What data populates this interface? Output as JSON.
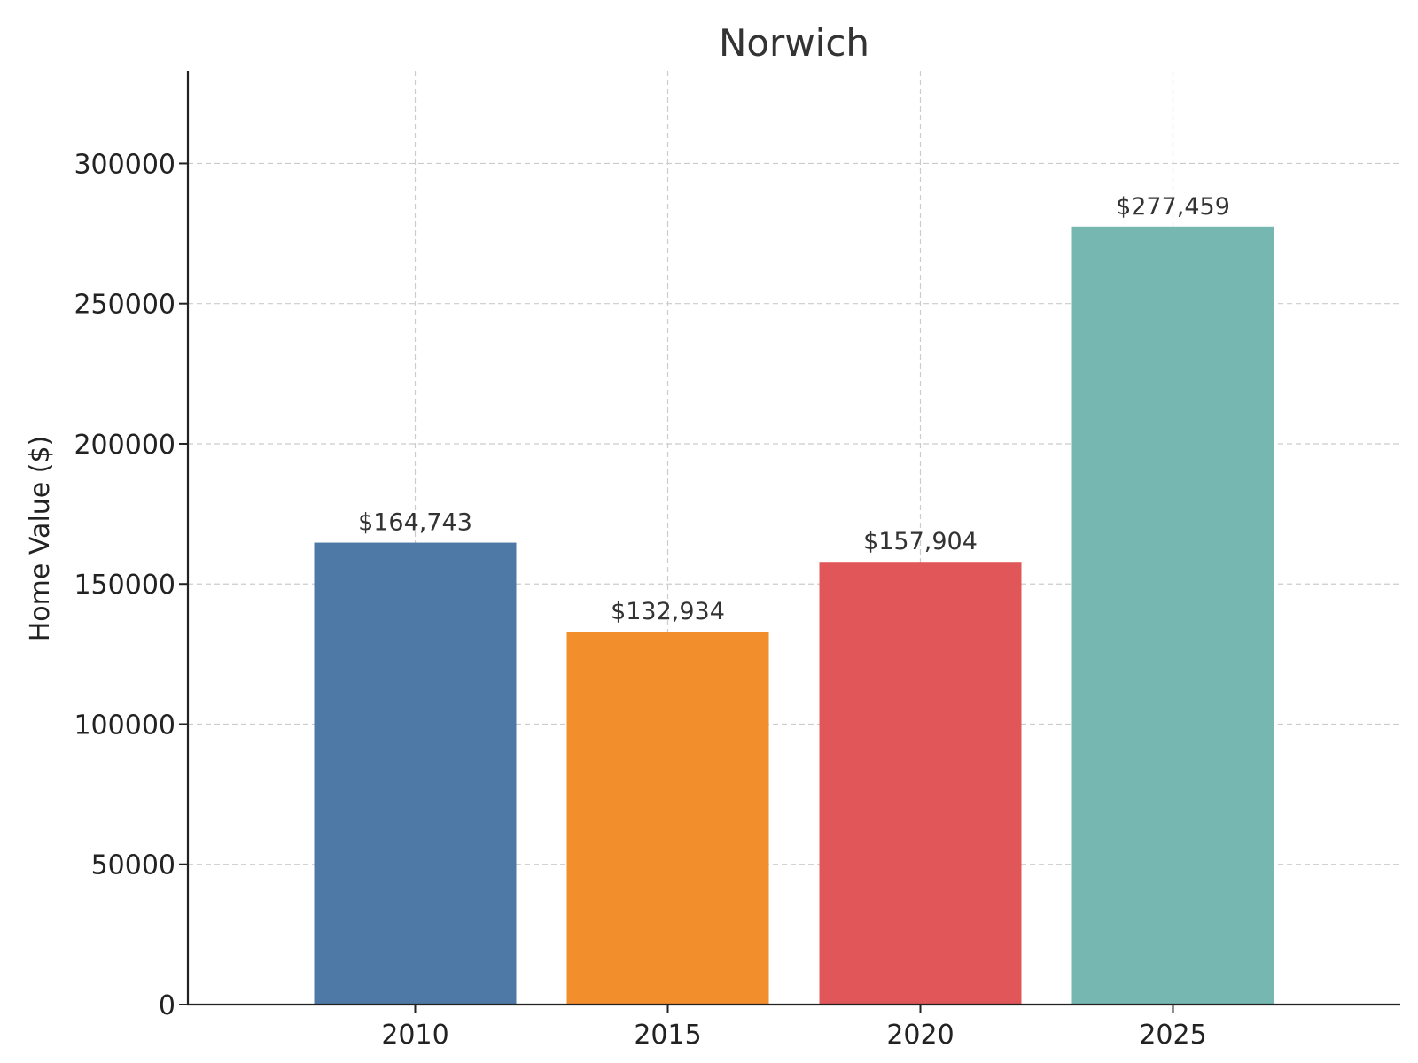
{
  "chart_data": {
    "type": "bar",
    "title": "Norwich",
    "xlabel": "",
    "ylabel": "Home Value ($)",
    "categories": [
      "2010",
      "2015",
      "2020",
      "2025"
    ],
    "values": [
      164743,
      132934,
      157904,
      277459
    ],
    "value_labels": [
      "$164,743",
      "$132,934",
      "$157,904",
      "$277,459"
    ],
    "colors": [
      "#4e79a7",
      "#f28e2b",
      "#e15759",
      "#76b7b2"
    ],
    "ylim": [
      0,
      333000
    ],
    "yticks": [
      0,
      50000,
      100000,
      150000,
      200000,
      250000,
      300000
    ],
    "ytick_labels": [
      "0",
      "50000",
      "100000",
      "150000",
      "200000",
      "250000",
      "300000"
    ],
    "grid": true,
    "legend": "none"
  }
}
